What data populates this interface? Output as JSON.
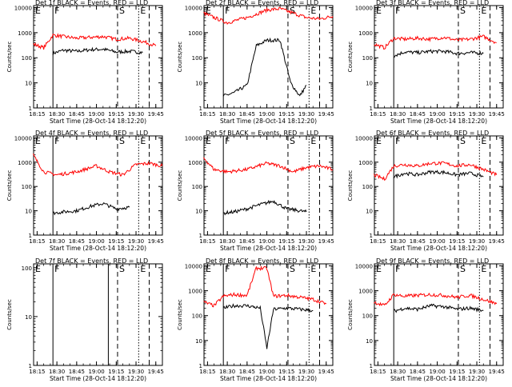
{
  "figure": {
    "xlabel": "Start Time (28-Oct-14 18:12:20)",
    "ylabel": "Counts/sec",
    "x_ticks": [
      "18:15",
      "18:30",
      "18:45",
      "19:00",
      "19:15",
      "19:30",
      "19:45"
    ],
    "y_ticks": [
      "1",
      "10",
      "100",
      "1000",
      "10000"
    ],
    "colors": {
      "events": "#000000",
      "lld": "#ff0000",
      "frame": "#000000"
    }
  },
  "chart_data": [
    {
      "type": "line",
      "title": "Det 1f BLACK = Events, RED = LLD",
      "scale_y": "log",
      "xlim": [
        "18:12:20",
        "19:50"
      ],
      "ylim": [
        1,
        12000
      ],
      "markers": [
        {
          "label": "E",
          "time": "18:12:20",
          "style": "dotted"
        },
        {
          "label": "F",
          "time": "18:27",
          "style": "solid"
        },
        {
          "label": "S",
          "time": "19:16",
          "style": "dashed"
        },
        {
          "label": "E",
          "time": "19:32",
          "style": "dotted"
        },
        {
          "label": "",
          "time": "19:40",
          "style": "dashed"
        }
      ],
      "series": [
        {
          "key": "events",
          "color": "#000000",
          "x": [
            "18:27",
            "18:35",
            "18:45",
            "18:55",
            "19:05",
            "19:15",
            "19:25",
            "19:35"
          ],
          "values": [
            150,
            200,
            180,
            210,
            220,
            170,
            180,
            160
          ]
        },
        {
          "key": "lld",
          "color": "#ff0000",
          "x": [
            "18:12",
            "18:20",
            "18:27",
            "18:35",
            "18:45",
            "18:55",
            "19:05",
            "19:15",
            "19:25",
            "19:35",
            "19:45"
          ],
          "values": [
            350,
            250,
            800,
            700,
            600,
            650,
            700,
            550,
            600,
            450,
            300
          ]
        }
      ]
    },
    {
      "type": "line",
      "title": "Det 2f BLACK = Events, RED = LLD",
      "scale_y": "log",
      "xlim": [
        "18:12:20",
        "19:50"
      ],
      "ylim": [
        1,
        12000
      ],
      "markers": [
        {
          "label": "E",
          "time": "18:12:20",
          "style": "dotted"
        },
        {
          "label": "F",
          "time": "18:27",
          "style": "solid"
        },
        {
          "label": "S",
          "time": "19:16",
          "style": "dashed"
        },
        {
          "label": "E",
          "time": "19:32",
          "style": "dotted"
        },
        {
          "label": "",
          "time": "19:40",
          "style": "dashed"
        }
      ],
      "series": [
        {
          "key": "events",
          "color": "#000000",
          "x": [
            "18:27",
            "18:35",
            "18:45",
            "18:52",
            "19:00",
            "19:10",
            "19:18",
            "19:25",
            "19:30"
          ],
          "values": [
            3,
            4,
            8,
            300,
            500,
            500,
            10,
            3,
            8
          ]
        },
        {
          "key": "lld",
          "color": "#ff0000",
          "x": [
            "18:12",
            "18:20",
            "18:30",
            "18:45",
            "19:00",
            "19:10",
            "19:20",
            "19:30",
            "19:40",
            "19:50"
          ],
          "values": [
            6000,
            4000,
            2500,
            4000,
            8000,
            9000,
            6000,
            4000,
            3500,
            4500
          ]
        }
      ]
    },
    {
      "type": "line",
      "title": "Det 3f BLACK = Events, RED = LLD",
      "scale_y": "log",
      "xlim": [
        "18:12:20",
        "19:50"
      ],
      "ylim": [
        1,
        12000
      ],
      "markers": [
        {
          "label": "E",
          "time": "18:12:20",
          "style": "dotted"
        },
        {
          "label": "F",
          "time": "18:27",
          "style": "solid"
        },
        {
          "label": "S",
          "time": "19:16",
          "style": "dashed"
        },
        {
          "label": "E",
          "time": "19:32",
          "style": "dotted"
        },
        {
          "label": "",
          "time": "19:40",
          "style": "dashed"
        }
      ],
      "series": [
        {
          "key": "events",
          "color": "#000000",
          "x": [
            "18:27",
            "18:35",
            "18:45",
            "18:55",
            "19:05",
            "19:15",
            "19:25",
            "19:35"
          ],
          "values": [
            120,
            170,
            160,
            180,
            180,
            150,
            160,
            150
          ]
        },
        {
          "key": "lld",
          "color": "#ff0000",
          "x": [
            "18:12",
            "18:20",
            "18:27",
            "18:35",
            "18:45",
            "18:55",
            "19:05",
            "19:15",
            "19:25",
            "19:35",
            "19:45"
          ],
          "values": [
            350,
            250,
            600,
            550,
            600,
            550,
            650,
            500,
            550,
            700,
            400
          ]
        }
      ]
    },
    {
      "type": "line",
      "title": "Det 4f BLACK = Events, RED = LLD",
      "scale_y": "log",
      "xlim": [
        "18:12:20",
        "19:50"
      ],
      "ylim": [
        1,
        12000
      ],
      "markers": [
        {
          "label": "E",
          "time": "18:12:20",
          "style": "dotted"
        },
        {
          "label": "F",
          "time": "18:27",
          "style": "solid"
        },
        {
          "label": "S",
          "time": "19:16",
          "style": "dashed"
        },
        {
          "label": "E",
          "time": "19:32",
          "style": "dotted"
        },
        {
          "label": "",
          "time": "19:40",
          "style": "dashed"
        }
      ],
      "series": [
        {
          "key": "events",
          "color": "#000000",
          "x": [
            "18:27",
            "18:35",
            "18:45",
            "18:55",
            "19:05",
            "19:15",
            "19:25"
          ],
          "values": [
            8,
            9,
            10,
            15,
            20,
            12,
            14
          ]
        },
        {
          "key": "lld",
          "color": "#ff0000",
          "x": [
            "18:12",
            "18:20",
            "18:30",
            "18:45",
            "19:00",
            "19:10",
            "19:20",
            "19:30",
            "19:40",
            "19:50"
          ],
          "values": [
            2000,
            400,
            300,
            400,
            700,
            400,
            300,
            800,
            900,
            700
          ]
        }
      ]
    },
    {
      "type": "line",
      "title": "Det 5f BLACK = Events, RED = LLD",
      "scale_y": "log",
      "xlim": [
        "18:12:20",
        "19:50"
      ],
      "ylim": [
        1,
        12000
      ],
      "markers": [
        {
          "label": "E",
          "time": "18:12:20",
          "style": "dotted"
        },
        {
          "label": "F",
          "time": "18:27",
          "style": "solid"
        },
        {
          "label": "S",
          "time": "19:16",
          "style": "dashed"
        },
        {
          "label": "E",
          "time": "19:32",
          "style": "dotted"
        },
        {
          "label": "",
          "time": "19:40",
          "style": "dashed"
        }
      ],
      "series": [
        {
          "key": "events",
          "color": "#000000",
          "x": [
            "18:27",
            "18:35",
            "18:45",
            "18:55",
            "19:05",
            "19:15",
            "19:25",
            "19:30"
          ],
          "values": [
            8,
            9,
            12,
            18,
            25,
            12,
            10,
            9
          ]
        },
        {
          "key": "lld",
          "color": "#ff0000",
          "x": [
            "18:12",
            "18:20",
            "18:30",
            "18:45",
            "19:00",
            "19:10",
            "19:20",
            "19:30",
            "19:40",
            "19:50"
          ],
          "values": [
            1500,
            500,
            400,
            500,
            900,
            700,
            400,
            600,
            700,
            500
          ]
        }
      ]
    },
    {
      "type": "line",
      "title": "Det 6f BLACK = Events, RED = LLD",
      "scale_y": "log",
      "xlim": [
        "18:12:20",
        "19:50"
      ],
      "ylim": [
        1,
        12000
      ],
      "markers": [
        {
          "label": "E",
          "time": "18:12:20",
          "style": "dotted"
        },
        {
          "label": "F",
          "time": "18:27",
          "style": "solid"
        },
        {
          "label": "S",
          "time": "19:16",
          "style": "dashed"
        },
        {
          "label": "E",
          "time": "19:32",
          "style": "dotted"
        },
        {
          "label": "",
          "time": "19:40",
          "style": "dashed"
        }
      ],
      "series": [
        {
          "key": "events",
          "color": "#000000",
          "x": [
            "18:27",
            "18:35",
            "18:45",
            "18:55",
            "19:05",
            "19:15",
            "19:25",
            "19:35"
          ],
          "values": [
            250,
            350,
            300,
            400,
            380,
            300,
            350,
            250
          ]
        },
        {
          "key": "lld",
          "color": "#ff0000",
          "x": [
            "18:12",
            "18:20",
            "18:27",
            "18:35",
            "18:45",
            "18:55",
            "19:05",
            "19:15",
            "19:25",
            "19:35",
            "19:45"
          ],
          "values": [
            300,
            200,
            700,
            800,
            700,
            900,
            900,
            700,
            800,
            500,
            300
          ]
        }
      ]
    },
    {
      "type": "line",
      "title": "Det 7f BLACK = Events, RED = LLD",
      "scale_y": "log",
      "xlim": [
        "18:12:20",
        "19:50"
      ],
      "ylim": [
        1,
        120
      ],
      "markers": [
        {
          "label": "E",
          "time": "18:12:20",
          "style": "dotted"
        },
        {
          "label": "F",
          "time": "18:27",
          "style": "solid"
        },
        {
          "label": "",
          "time": "19:09",
          "style": "solid"
        },
        {
          "label": "S",
          "time": "19:16",
          "style": "dashed"
        },
        {
          "label": "E",
          "time": "19:32",
          "style": "dotted"
        },
        {
          "label": "",
          "time": "19:40",
          "style": "dashed"
        }
      ],
      "series": []
    },
    {
      "type": "line",
      "title": "Det 8f BLACK = Events, RED = LLD",
      "scale_y": "log",
      "xlim": [
        "18:12:20",
        "19:50"
      ],
      "ylim": [
        1,
        12000
      ],
      "markers": [
        {
          "label": "E",
          "time": "18:12:20",
          "style": "dotted"
        },
        {
          "label": "F",
          "time": "18:27",
          "style": "solid"
        },
        {
          "label": "S",
          "time": "19:16",
          "style": "dashed"
        },
        {
          "label": "E",
          "time": "19:32",
          "style": "dotted"
        },
        {
          "label": "",
          "time": "19:40",
          "style": "dashed"
        }
      ],
      "series": [
        {
          "key": "events",
          "color": "#000000",
          "x": [
            "18:27",
            "18:35",
            "18:45",
            "18:55",
            "19:00",
            "19:05",
            "19:15",
            "19:25",
            "19:35"
          ],
          "values": [
            200,
            250,
            250,
            200,
            5,
            180,
            200,
            180,
            160
          ]
        },
        {
          "key": "lld",
          "color": "#ff0000",
          "x": [
            "18:12",
            "18:20",
            "18:27",
            "18:35",
            "18:45",
            "18:52",
            "19:00",
            "19:05",
            "19:15",
            "19:25",
            "19:35",
            "19:45"
          ],
          "values": [
            350,
            250,
            600,
            700,
            650,
            8000,
            8000,
            600,
            650,
            550,
            450,
            300
          ]
        }
      ]
    },
    {
      "type": "line",
      "title": "Det 9f BLACK = Events, RED = LLD",
      "scale_y": "log",
      "xlim": [
        "18:12:20",
        "19:50"
      ],
      "ylim": [
        1,
        12000
      ],
      "markers": [
        {
          "label": "E",
          "time": "18:12:20",
          "style": "dotted"
        },
        {
          "label": "F",
          "time": "18:27",
          "style": "solid"
        },
        {
          "label": "S",
          "time": "19:16",
          "style": "dashed"
        },
        {
          "label": "E",
          "time": "19:32",
          "style": "dotted"
        },
        {
          "label": "",
          "time": "19:40",
          "style": "dashed"
        }
      ],
      "series": [
        {
          "key": "events",
          "color": "#000000",
          "x": [
            "18:27",
            "18:35",
            "18:45",
            "18:55",
            "19:05",
            "19:15",
            "19:25",
            "19:35"
          ],
          "values": [
            150,
            200,
            180,
            250,
            230,
            180,
            200,
            160
          ]
        },
        {
          "key": "lld",
          "color": "#ff0000",
          "x": [
            "18:12",
            "18:20",
            "18:27",
            "18:35",
            "18:45",
            "18:55",
            "19:05",
            "19:15",
            "19:25",
            "19:35",
            "19:45"
          ],
          "values": [
            350,
            250,
            700,
            600,
            650,
            700,
            650,
            550,
            650,
            450,
            300
          ]
        }
      ]
    }
  ]
}
